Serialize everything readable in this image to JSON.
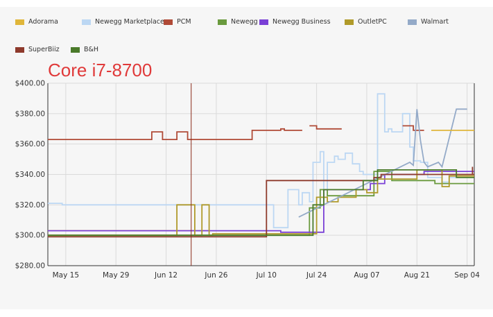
{
  "chart_data": {
    "type": "line",
    "title": "Core i7-8700",
    "xlabel": "",
    "ylabel": "",
    "ylim": [
      280,
      400
    ],
    "y_ticks": [
      "$280.00",
      "$300.00",
      "$320.00",
      "$340.00",
      "$360.00",
      "$380.00",
      "$400.00"
    ],
    "x_ticks": [
      "May 15",
      "May 29",
      "Jun 12",
      "Jun 26",
      "Jul 10",
      "Jul 24",
      "Aug 07",
      "Aug 21",
      "Sep 04"
    ],
    "x_tick_days": [
      136,
      150,
      164,
      178,
      192,
      206,
      220,
      234,
      248
    ],
    "xlim_days": [
      131,
      250
    ],
    "x_day_note": "x values are day-of-year (2018): 136 = May 15, 248 = Sep 04",
    "grid": true,
    "legend_position": "top",
    "marker_line_day": 171,
    "marker_line_color": "#8b2a1a",
    "series": [
      {
        "name": "Adorama",
        "color": "#e0b63a",
        "x": [
          131,
          176
        ],
        "y": [
          303,
          303
        ]
      },
      {
        "name": "Newegg Marketplace",
        "color": "#bcd7f3",
        "x": [
          131,
          135,
          135,
          194,
          194,
          198,
          198,
          201,
          201,
          202,
          202,
          204,
          204,
          205,
          205,
          207,
          207,
          208,
          208,
          209,
          209,
          211,
          211,
          212,
          212,
          214,
          214,
          216,
          216,
          218,
          218,
          219,
          219,
          223,
          223,
          225,
          225,
          226,
          226,
          227,
          227,
          230,
          230,
          232,
          232,
          233,
          233,
          235,
          235,
          237,
          237,
          241,
          241,
          243,
          243,
          245,
          245,
          250
        ],
        "y": [
          321,
          321,
          320,
          320,
          305,
          305,
          330,
          330,
          320,
          320,
          328,
          328,
          322,
          322,
          348,
          348,
          355,
          355,
          325,
          325,
          348,
          348,
          352,
          352,
          350,
          350,
          354,
          354,
          347,
          347,
          342,
          342,
          340,
          340,
          393,
          393,
          368,
          368,
          370,
          370,
          368,
          368,
          380,
          380,
          358,
          358,
          349,
          349,
          348,
          348,
          338,
          338,
          335,
          335,
          338,
          338,
          340,
          340
        ]
      },
      {
        "name": "PCM",
        "color": "#b04a36",
        "x": [
          131,
          160,
          160,
          163,
          163,
          167,
          167,
          170,
          170,
          188,
          188,
          196,
          196,
          197,
          197,
          202
        ],
        "y": [
          363,
          363,
          368,
          368,
          363,
          363,
          368,
          368,
          363,
          363,
          369,
          369,
          370,
          370,
          369,
          369
        ]
      },
      {
        "name": "PCM",
        "color": "#b04a36",
        "x": [
          204,
          206,
          206,
          213
        ],
        "y": [
          372,
          372,
          370,
          370
        ]
      },
      {
        "name": "PCM",
        "color": "#b04a36",
        "x": [
          230,
          233,
          233,
          236
        ],
        "y": [
          372,
          372,
          369,
          369
        ]
      },
      {
        "name": "Newegg",
        "color": "#6a9a3e",
        "x": [
          131,
          204,
          204,
          207,
          207,
          209,
          209,
          222,
          222,
          227,
          227,
          239,
          239,
          250
        ],
        "y": [
          300,
          300,
          318,
          318,
          330,
          330,
          326,
          326,
          342,
          342,
          336,
          336,
          334,
          334
        ]
      },
      {
        "name": "Newegg Business",
        "color": "#7a40d6",
        "x": [
          131,
          196,
          196,
          208,
          208,
          216,
          216,
          221,
          221,
          225,
          225,
          236,
          236,
          250
        ],
        "y": [
          303,
          303,
          302,
          302,
          330,
          330,
          330,
          330,
          334,
          334,
          340,
          340,
          342,
          342
        ]
      },
      {
        "name": "OutletPC",
        "color": "#b09a2a",
        "x": [
          131,
          167,
          167,
          172,
          172,
          174,
          174,
          176,
          176,
          177,
          177,
          206,
          206,
          209,
          209,
          212,
          212,
          217,
          217,
          220,
          220,
          223,
          223,
          234,
          234,
          241,
          241,
          243,
          243,
          250
        ],
        "y": [
          300,
          300,
          320,
          320,
          300,
          300,
          320,
          320,
          300,
          300,
          301,
          301,
          325,
          325,
          322,
          322,
          325,
          325,
          330,
          330,
          328,
          328,
          337,
          337,
          343,
          343,
          332,
          332,
          339,
          339
        ]
      },
      {
        "name": "Walmart",
        "color": "#94aac8",
        "x": [
          201,
          201,
          201,
          232,
          232,
          233,
          233,
          234,
          234,
          235,
          235,
          236,
          236,
          237,
          237,
          240,
          240,
          241,
          241,
          245,
          245,
          248
        ],
        "y": [
          312,
          312,
          312,
          348,
          348,
          346,
          346,
          383,
          383,
          362,
          362,
          348,
          348,
          345,
          345,
          348,
          348,
          345,
          345,
          383,
          383,
          383
        ]
      },
      {
        "name": "SuperBiiz",
        "color": "#8e3a2c",
        "x": [
          131,
          192,
          192,
          222,
          222,
          224,
          224,
          250
        ],
        "y": [
          299,
          299,
          336,
          336,
          338,
          338,
          340,
          340
        ]
      },
      {
        "name": "SuperBiiz",
        "color": "#8e3a2c",
        "x": [
          249.5,
          249.5
        ],
        "y": [
          340,
          345
        ]
      },
      {
        "name": "B&H",
        "color": "#4a7a2a",
        "x": [
          131,
          205,
          205,
          208,
          208,
          219,
          219,
          223,
          223,
          245,
          245,
          250
        ],
        "y": [
          300,
          300,
          320,
          320,
          330,
          330,
          336,
          336,
          343,
          343,
          338,
          338
        ]
      },
      {
        "name": "Adorama",
        "color": "#e0b63a",
        "x": [
          238,
          250
        ],
        "y": [
          369,
          369
        ]
      }
    ]
  },
  "legend": [
    {
      "name": "Adorama",
      "color": "#e0b63a"
    },
    {
      "name": "Newegg Marketplace",
      "color": "#bcd7f3"
    },
    {
      "name": "PCM",
      "color": "#b04a36"
    },
    {
      "name": "Newegg",
      "color": "#6a9a3e"
    },
    {
      "name": "Newegg Business",
      "color": "#7a40d6"
    },
    {
      "name": "OutletPC",
      "color": "#b09a2a"
    },
    {
      "name": "Walmart",
      "color": "#94aac8"
    },
    {
      "name": "SuperBiiz",
      "color": "#8e3a2c"
    },
    {
      "name": "B&H",
      "color": "#4a7a2a"
    }
  ]
}
